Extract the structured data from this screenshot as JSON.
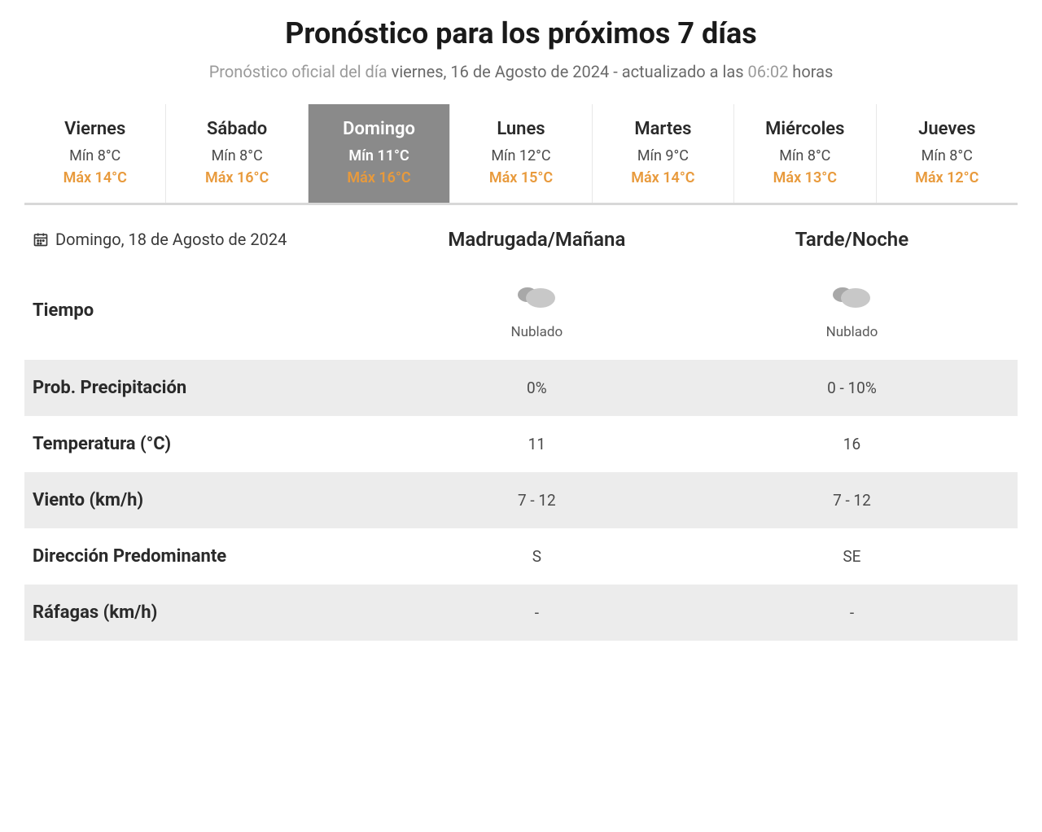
{
  "colors": {
    "max_temp": "#e89a3c",
    "active_tab_bg": "#8a8a8a",
    "shaded_row": "#ececec",
    "title": "#1a1a1a",
    "subtitle_gray": "#9a9a9a",
    "subtitle_dark": "#6a6a6a",
    "text_dark": "#2a2a2a",
    "text_mid": "#4a4a4a",
    "cloud_light": "#c8c8c8",
    "cloud_dark": "#a8a8a8"
  },
  "header": {
    "title": "Pronóstico para los próximos 7 días",
    "subtitle_prefix": "Pronóstico oficial del día ",
    "subtitle_date": "viernes, 16 de Agosto de 2024 - actualizado a las ",
    "subtitle_time": "06:02 ",
    "subtitle_suffix": "horas"
  },
  "days": [
    {
      "name": "Viernes",
      "min": "Mín 8°C",
      "max": "Máx 14°C",
      "active": false
    },
    {
      "name": "Sábado",
      "min": "Mín 8°C",
      "max": "Máx 16°C",
      "active": false
    },
    {
      "name": "Domingo",
      "min": "Mín 11°C",
      "max": "Máx 16°C",
      "active": true
    },
    {
      "name": "Lunes",
      "min": "Mín 12°C",
      "max": "Máx 15°C",
      "active": false
    },
    {
      "name": "Martes",
      "min": "Mín 9°C",
      "max": "Máx 14°C",
      "active": false
    },
    {
      "name": "Miércoles",
      "min": "Mín 8°C",
      "max": "Máx 13°C",
      "active": false
    },
    {
      "name": "Jueves",
      "min": "Mín 8°C",
      "max": "Máx 12°C",
      "active": false
    }
  ],
  "detail": {
    "selected_date": "Domingo, 18 de Agosto de 2024",
    "period1_label": "Madrugada/Mañana",
    "period2_label": "Tarde/Noche",
    "weather_label": "Tiempo",
    "period1_desc": "Nublado",
    "period2_desc": "Nublado",
    "rows": [
      {
        "label": "Prob. Precipitación",
        "v1": "0%",
        "v2": "0 - 10%",
        "shaded": true
      },
      {
        "label": "Temperatura (°C)",
        "v1": "11",
        "v2": "16",
        "shaded": false
      },
      {
        "label": "Viento (km/h)",
        "v1": "7 - 12",
        "v2": "7 - 12",
        "shaded": true
      },
      {
        "label": "Dirección Predominante",
        "v1": "S",
        "v2": "SE",
        "shaded": false
      },
      {
        "label": "Ráfagas (km/h)",
        "v1": "-",
        "v2": "-",
        "shaded": true
      }
    ]
  }
}
